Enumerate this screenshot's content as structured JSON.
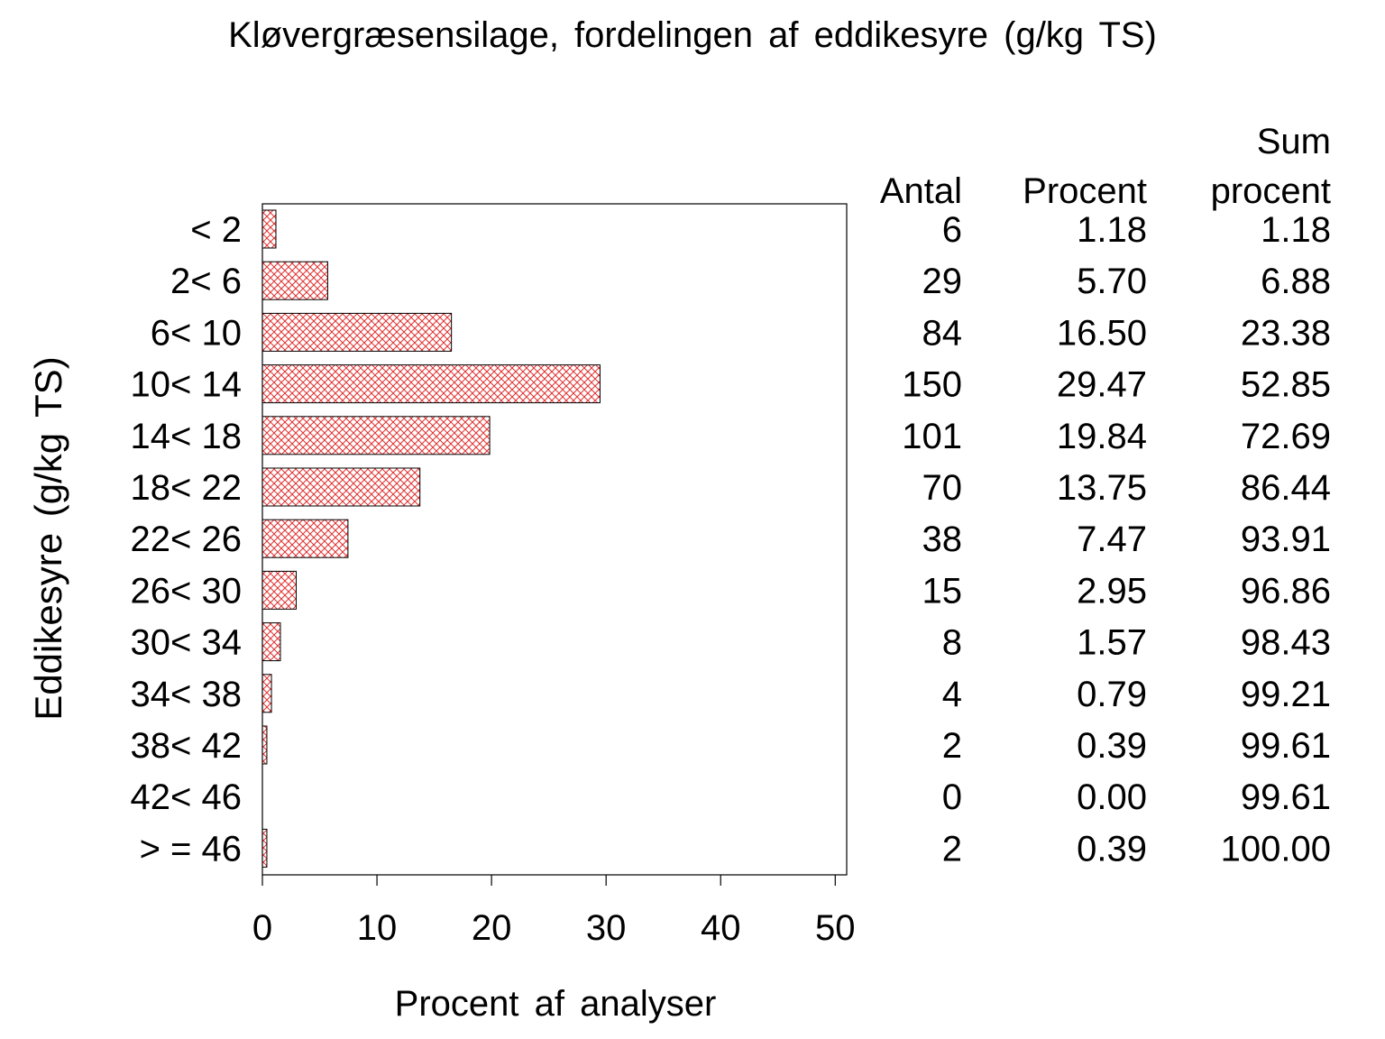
{
  "chart_data": {
    "type": "bar",
    "orientation": "horizontal",
    "title": "Kløvergræsensilage, fordelingen af eddikesyre (g/kg TS)",
    "xlabel": "Procent af analyser",
    "ylabel": "Eddikesyre (g/kg TS)",
    "xlim": [
      0,
      51
    ],
    "xticks": [
      "0",
      "10",
      "20",
      "30",
      "40",
      "50"
    ],
    "xtick_values": [
      0,
      10,
      20,
      30,
      40,
      50
    ],
    "grid": false,
    "bar_fill_color": "#e03030",
    "bar_fill_pattern": "crosshatch",
    "categories": [
      "< 2",
      "2< 6",
      "6< 10",
      "10< 14",
      "14< 18",
      "18< 22",
      "22< 26",
      "26< 30",
      "30< 34",
      "34< 38",
      "38< 42",
      "42< 46",
      "> = 46"
    ],
    "values": [
      1.18,
      5.7,
      16.5,
      29.47,
      19.84,
      13.75,
      7.47,
      2.95,
      1.57,
      0.79,
      0.39,
      0.0,
      0.39
    ],
    "table": {
      "header_sum_line1": "Sum",
      "headers": [
        "Antal",
        "Procent",
        "procent"
      ],
      "antal": [
        "6",
        "29",
        "84",
        "150",
        "101",
        "70",
        "38",
        "15",
        "8",
        "4",
        "2",
        "0",
        "2"
      ],
      "procent": [
        "1.18",
        "5.70",
        "16.50",
        "29.47",
        "19.84",
        "13.75",
        "7.47",
        "2.95",
        "1.57",
        "0.79",
        "0.39",
        "0.00",
        "0.39"
      ],
      "sum_procent": [
        "1.18",
        "6.88",
        "23.38",
        "52.85",
        "72.69",
        "86.44",
        "93.91",
        "96.86",
        "98.43",
        "99.21",
        "99.61",
        "99.61",
        "100.00"
      ]
    }
  }
}
